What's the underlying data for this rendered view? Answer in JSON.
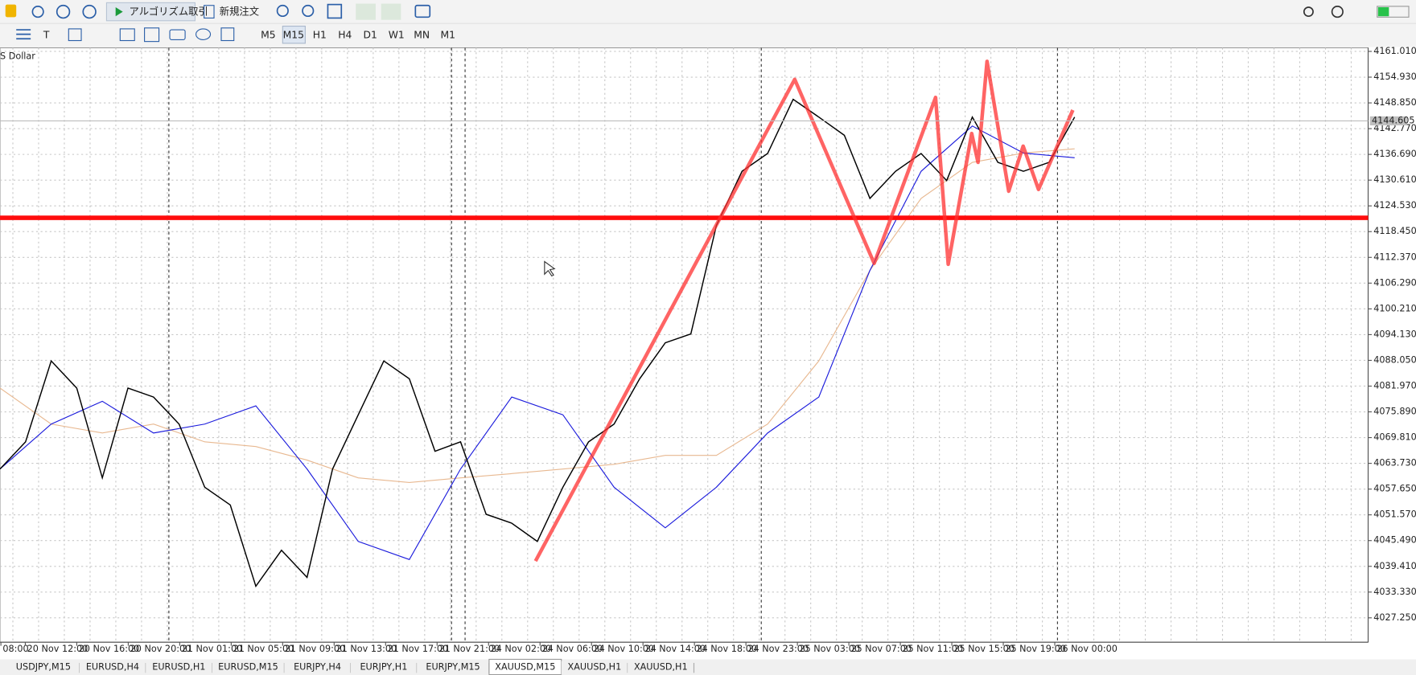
{
  "toolbar": {
    "algo_trading": "アルゴリズム取引",
    "new_order": "新規注文",
    "timeframes": [
      "M5",
      "M15",
      "H1",
      "H4",
      "D1",
      "W1",
      "MN",
      "M1"
    ],
    "active_timeframe_index": 1
  },
  "chart_data": {
    "type": "line",
    "symbol_label": "S Dollar",
    "x_labels": [
      "08:00",
      "20 Nov 12:00",
      "20 Nov 16:00",
      "20 Nov 20:00",
      "21 Nov 01:00",
      "21 Nov 05:00",
      "21 Nov 09:00",
      "21 Nov 13:00",
      "21 Nov 17:00",
      "21 Nov 21:00",
      "24 Nov 02:00",
      "24 Nov 06:00",
      "24 Nov 10:00",
      "24 Nov 14:00",
      "24 Nov 18:00",
      "24 Nov 23:00",
      "25 Nov 03:00",
      "25 Nov 07:00",
      "25 Nov 11:00",
      "25 Nov 15:00",
      "25 Nov 19:00",
      "26 Nov 00:00"
    ],
    "ylim": [
      4021.5,
      4161.86
    ],
    "yticks": [
      {
        "value": 4161.01,
        "label": "4161.010"
      },
      {
        "value": 4154.93,
        "label": "4154.930"
      },
      {
        "value": 4148.85,
        "label": "4148.850"
      },
      {
        "value": 4142.77,
        "label": "4142.770"
      },
      {
        "value": 4136.69,
        "label": "4136.690"
      },
      {
        "value": 4130.61,
        "label": "4130.610"
      },
      {
        "value": 4124.53,
        "label": "4124.530"
      },
      {
        "value": 4118.45,
        "label": "4118.450"
      },
      {
        "value": 4112.37,
        "label": "4112.370"
      },
      {
        "value": 4106.29,
        "label": "4106.290"
      },
      {
        "value": 4100.21,
        "label": "4100.210"
      },
      {
        "value": 4094.13,
        "label": "4094.130"
      },
      {
        "value": 4088.05,
        "label": "4088.050"
      },
      {
        "value": 4081.97,
        "label": "4081.970"
      },
      {
        "value": 4075.89,
        "label": "4075.890"
      },
      {
        "value": 4069.81,
        "label": "4069.810"
      },
      {
        "value": 4063.73,
        "label": "4063.730"
      },
      {
        "value": 4057.65,
        "label": "4057.650"
      },
      {
        "value": 4051.57,
        "label": "4051.570"
      },
      {
        "value": 4045.49,
        "label": "4045.490"
      },
      {
        "value": 4039.41,
        "label": "4039.410"
      },
      {
        "value": 4033.33,
        "label": "4033.330"
      },
      {
        "value": 4027.25,
        "label": "4027.250"
      }
    ],
    "current_price": 4144.605,
    "grid": true,
    "series": [
      {
        "color": "#000000",
        "values": [
          4062.4,
          4068.8,
          4087.9,
          4081.5,
          4060.3,
          4081.5,
          4079.4,
          4073.0,
          4058.1,
          4053.9,
          4034.7,
          4043.2,
          4036.8,
          4062.4,
          4075.2,
          4087.9,
          4083.7,
          4066.6,
          4068.8,
          4051.7,
          4049.6,
          4045.3,
          4058.1,
          4068.8,
          4073.0,
          4083.7,
          4092.2,
          4094.3,
          4119.9,
          4132.7,
          4136.9,
          4149.7,
          4145.5,
          4141.2,
          4126.3,
          4132.7,
          4136.9,
          4130.5,
          4145.5,
          4134.8,
          4132.7,
          4134.8,
          4145.5
        ]
      },
      {
        "color": "#1a1adc",
        "values": [
          4062.4,
          4073.0,
          4078.4,
          4070.9,
          4073.0,
          4077.3,
          4062.4,
          4045.3,
          4041.0,
          4062.4,
          4079.4,
          4075.2,
          4058.1,
          4048.5,
          4058.1,
          4070.9,
          4079.4,
          4109.3,
          4132.7,
          4143.4,
          4137.0,
          4135.9
        ]
      },
      {
        "color": "#e8b890",
        "values": [
          4081.5,
          4073.0,
          4070.9,
          4073.0,
          4068.8,
          4067.7,
          4064.5,
          4060.3,
          4059.2,
          4060.3,
          4061.3,
          4062.4,
          4063.5,
          4065.6,
          4065.6,
          4073.0,
          4087.9,
          4109.3,
          4126.3,
          4134.8,
          4137.0,
          4138.0
        ]
      }
    ]
  },
  "tabs": {
    "items": [
      "USDJPY,M15",
      "EURUSD,H4",
      "EURUSD,H1",
      "EURUSD,M15",
      "EURJPY,H4",
      "EURJPY,H1",
      "EURJPY,M15",
      "XAUUSD,M15",
      "XAUUSD,H1",
      "XAUUSD,H1"
    ],
    "active_index": 7
  }
}
